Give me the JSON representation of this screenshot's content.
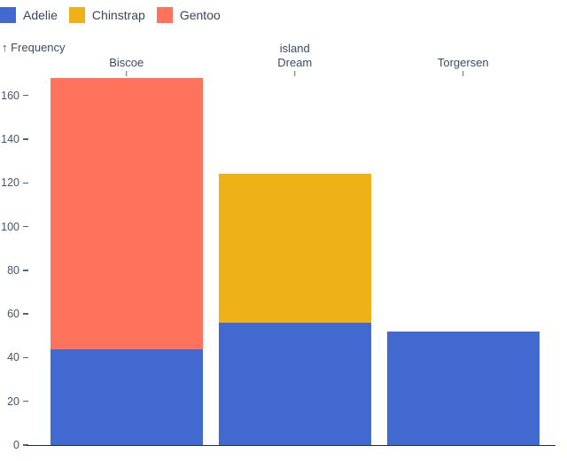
{
  "chart_data": {
    "type": "bar",
    "stacked": true,
    "orientation": "vertical",
    "categories": [
      "Biscoe",
      "Dream",
      "Torgersen"
    ],
    "series": [
      {
        "name": "Adelie",
        "color": "#4269d0",
        "values": [
          44,
          56,
          52
        ]
      },
      {
        "name": "Chinstrap",
        "color": "#efb118",
        "values": [
          0,
          68,
          0
        ]
      },
      {
        "name": "Gentoo",
        "color": "#ff725c",
        "values": [
          124,
          0,
          0
        ]
      }
    ],
    "category_totals": [
      168,
      124,
      52
    ],
    "xlabel": "island",
    "ylabel": "↑ Frequency",
    "y_ticks": [
      0,
      20,
      40,
      60,
      80,
      100,
      120,
      140,
      160
    ],
    "ylim": [
      0,
      168
    ],
    "grid": false,
    "legend_position": "top-left",
    "x_axis_position": "top",
    "background": "#ffffff"
  }
}
